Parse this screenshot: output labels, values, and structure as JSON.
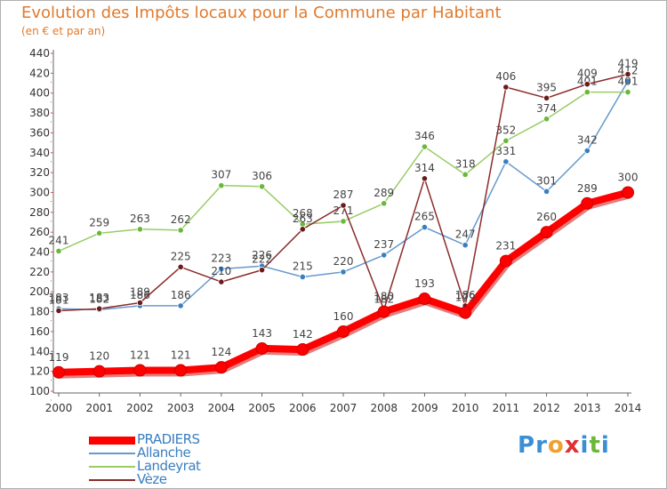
{
  "header": {
    "title": "Evolution des Impôts locaux pour la Commune par Habitant",
    "subtitle": "(en € et par an)"
  },
  "logo": {
    "text": "Proxiti",
    "letters": [
      "P",
      "r",
      "o",
      "x",
      "i",
      "t",
      "i"
    ],
    "letter_colors": [
      "#3a8fd4",
      "#3a8fd4",
      "#f0a030",
      "#e03030",
      "#3a8fd4",
      "#6ab83a",
      "#3a8fd4"
    ]
  },
  "colors": {
    "title": "#e07a2c",
    "axis": "#555555",
    "grid_tick": "#d9534f",
    "label_text": "#444444"
  },
  "chart_data": {
    "type": "line",
    "title": "Evolution des Impôts locaux pour la Commune par Habitant",
    "subtitle": "(en € et par an)",
    "xlabel": "",
    "ylabel": "",
    "x": [
      2000,
      2001,
      2002,
      2003,
      2004,
      2005,
      2006,
      2007,
      2008,
      2009,
      2010,
      2011,
      2012,
      2013,
      2014
    ],
    "ylim": [
      100,
      440
    ],
    "yticks": [
      100,
      120,
      140,
      160,
      180,
      200,
      220,
      240,
      260,
      280,
      300,
      320,
      340,
      360,
      380,
      400,
      420,
      440
    ],
    "legend_position": "bottom-left",
    "series": [
      {
        "name": "Allanche",
        "color": "#6699cc",
        "marker": "#3a7fc0",
        "emphasis": false,
        "values": [
          183,
          182,
          186,
          186,
          223,
          226,
          215,
          220,
          237,
          265,
          247,
          331,
          301,
          342,
          412
        ]
      },
      {
        "name": "Landeyrat",
        "color": "#99cc66",
        "marker": "#6ab83a",
        "emphasis": false,
        "values": [
          241,
          259,
          263,
          262,
          307,
          306,
          268,
          271,
          289,
          346,
          318,
          352,
          374,
          401,
          401
        ]
      },
      {
        "name": "Vèze",
        "color": "#8b2b2b",
        "marker": "#6a1a1a",
        "emphasis": false,
        "values": [
          181,
          183,
          189,
          225,
          210,
          222,
          263,
          287,
          182,
          314,
          186,
          406,
          395,
          409,
          419
        ]
      },
      {
        "name": "PRADIERS",
        "color": "#ff0000",
        "marker": "#ff0000",
        "emphasis": true,
        "values": [
          119,
          120,
          121,
          121,
          124,
          143,
          142,
          160,
          180,
          193,
          179,
          231,
          260,
          289,
          300
        ]
      }
    ]
  }
}
